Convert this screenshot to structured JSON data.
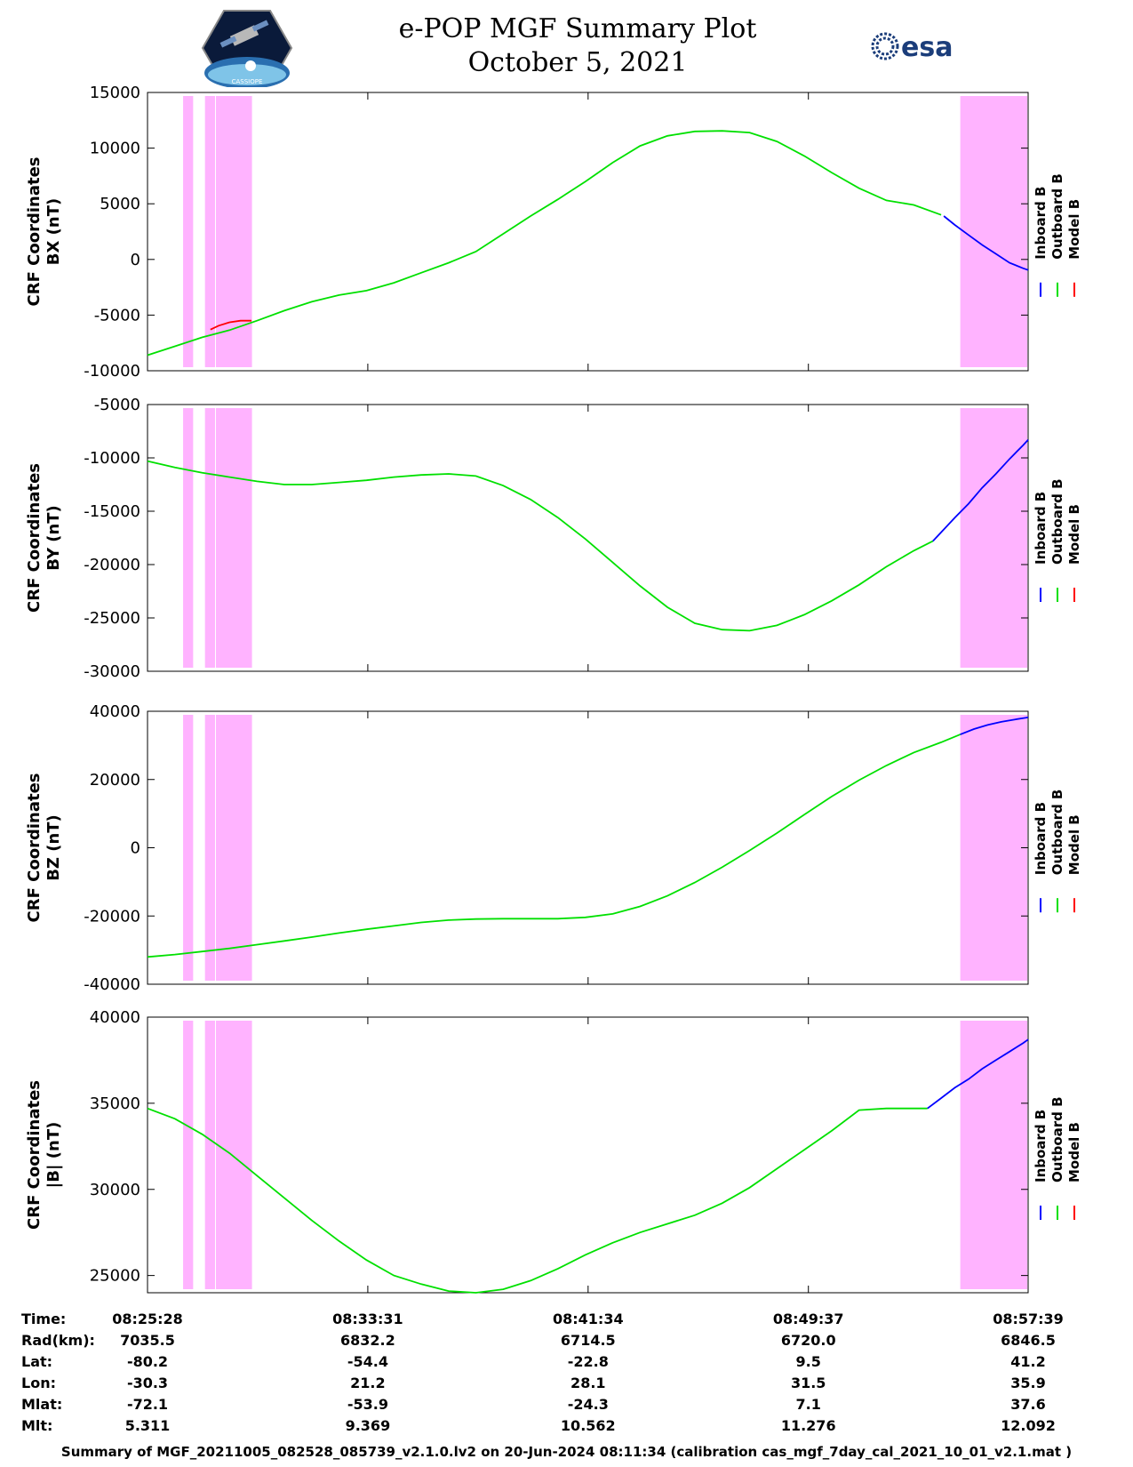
{
  "header": {
    "title": "e-POP MGF Summary Plot",
    "subtitle": "October 5, 2021",
    "logo_left": "CASSIOPE mission logo",
    "logo_left_text": "CASSIOPE",
    "logo_right": "esa logo",
    "logo_right_text": "esa"
  },
  "colors": {
    "inboard": "#0000ff",
    "outboard": "#00e000",
    "model": "#ff0000",
    "shading": "#ffb3ff"
  },
  "legend": {
    "inboard": "Inboard B",
    "outboard": "Outboard B",
    "model": "Model B"
  },
  "chart_data": [
    {
      "type": "line",
      "ylabel": [
        "CRF Coordinates",
        "BX (nT)"
      ],
      "ylim": [
        -10000,
        15000
      ],
      "yticks": [
        -10000,
        -5000,
        0,
        5000,
        10000,
        15000
      ],
      "tick_labels": [
        "-10000",
        "-5000",
        "0",
        "5000",
        "10000",
        "15000"
      ],
      "x_unit": "minutes after 08:25:28",
      "xlim": [
        0,
        32.18
      ],
      "shaded_intervals": [
        [
          1.3,
          1.7
        ],
        [
          2.1,
          2.5
        ],
        [
          2.5,
          3.85
        ],
        [
          29.7,
          32.18
        ]
      ],
      "series": [
        {
          "name": "Inboard B",
          "x": [
            29.1,
            29.5,
            30.0,
            30.5,
            31.0,
            31.5,
            32.0,
            32.18
          ],
          "values": [
            3900,
            3100,
            2200,
            1300,
            500,
            -300,
            -800,
            -950
          ]
        },
        {
          "name": "Outboard B",
          "x": [
            0,
            1,
            2,
            3,
            4,
            5,
            6,
            7,
            8,
            9,
            10,
            11,
            12,
            13,
            14,
            15,
            16,
            17,
            18,
            19,
            20,
            21,
            22,
            23,
            24,
            25,
            26,
            27,
            28,
            29
          ],
          "values": [
            -8600,
            -7800,
            -7000,
            -6350,
            -5500,
            -4600,
            -3800,
            -3200,
            -2800,
            -2100,
            -1200,
            -300,
            700,
            2300,
            3900,
            5400,
            7000,
            8700,
            10200,
            11100,
            11500,
            11550,
            11400,
            10600,
            9300,
            7800,
            6400,
            5300,
            4900,
            4000
          ]
        },
        {
          "name": "Model B",
          "x": [
            2.3,
            2.6,
            3.0,
            3.4,
            3.8
          ],
          "values": [
            -6300,
            -5950,
            -5650,
            -5500,
            -5500
          ]
        }
      ]
    },
    {
      "type": "line",
      "ylabel": [
        "CRF Coordinates",
        "BY (nT)"
      ],
      "ylim": [
        -30000,
        -5000
      ],
      "yticks": [
        -30000,
        -25000,
        -20000,
        -15000,
        -10000,
        -5000
      ],
      "tick_labels": [
        "-30000",
        "-25000",
        "-20000",
        "-15000",
        "-10000",
        "-5000"
      ],
      "x_unit": "minutes after 08:25:28",
      "xlim": [
        0,
        32.18
      ],
      "shaded_intervals": [
        [
          1.3,
          1.7
        ],
        [
          2.1,
          2.5
        ],
        [
          2.5,
          3.85
        ],
        [
          29.7,
          32.18
        ]
      ],
      "series": [
        {
          "name": "Inboard B",
          "x": [
            28.7,
            29.5,
            30.0,
            30.5,
            31.0,
            31.5,
            32.0,
            32.18
          ],
          "values": [
            -17800,
            -15600,
            -14300,
            -12800,
            -11500,
            -10100,
            -8800,
            -8300
          ]
        },
        {
          "name": "Outboard B",
          "x": [
            0,
            1,
            2,
            3,
            4,
            5,
            6,
            7,
            8,
            9,
            10,
            11,
            12,
            13,
            14,
            15,
            16,
            17,
            18,
            19,
            20,
            21,
            22,
            23,
            24,
            25,
            26,
            27,
            28,
            28.7
          ],
          "values": [
            -10300,
            -10900,
            -11400,
            -11800,
            -12200,
            -12500,
            -12500,
            -12300,
            -12100,
            -11800,
            -11600,
            -11500,
            -11700,
            -12600,
            -13900,
            -15600,
            -17600,
            -19800,
            -22000,
            -24000,
            -25500,
            -26100,
            -26200,
            -25700,
            -24700,
            -23400,
            -21900,
            -20200,
            -18700,
            -17800
          ]
        }
      ]
    },
    {
      "type": "line",
      "ylabel": [
        "CRF Coordinates",
        "BZ (nT)"
      ],
      "ylim": [
        -40000,
        40000
      ],
      "yticks": [
        -40000,
        -20000,
        0,
        20000,
        40000
      ],
      "tick_labels": [
        "-40000",
        "-20000",
        "0",
        "20000",
        "40000"
      ],
      "x_unit": "minutes after 08:25:28",
      "xlim": [
        0,
        32.18
      ],
      "shaded_intervals": [
        [
          1.3,
          1.7
        ],
        [
          2.1,
          2.5
        ],
        [
          2.5,
          3.85
        ],
        [
          29.7,
          32.18
        ]
      ],
      "series": [
        {
          "name": "Inboard B",
          "x": [
            29.7,
            30.2,
            30.7,
            31.2,
            31.7,
            32.18
          ],
          "values": [
            33200,
            34800,
            36000,
            36900,
            37600,
            38200
          ]
        },
        {
          "name": "Outboard B",
          "x": [
            0,
            1,
            2,
            3,
            4,
            5,
            6,
            7,
            8,
            9,
            10,
            11,
            12,
            13,
            14,
            15,
            16,
            17,
            18,
            19,
            20,
            21,
            22,
            23,
            24,
            25,
            26,
            27,
            28,
            29,
            29.7
          ],
          "values": [
            -32000,
            -31300,
            -30400,
            -29500,
            -28400,
            -27300,
            -26200,
            -25000,
            -23900,
            -22900,
            -21900,
            -21200,
            -20900,
            -20800,
            -20800,
            -20800,
            -20400,
            -19400,
            -17200,
            -14100,
            -10200,
            -5700,
            -800,
            4300,
            9700,
            15000,
            19800,
            24100,
            27900,
            30900,
            33200
          ]
        }
      ]
    },
    {
      "type": "line",
      "ylabel": [
        "CRF Coordinates",
        "|B| (nT)"
      ],
      "ylim": [
        24000,
        40000
      ],
      "yticks": [
        25000,
        30000,
        35000,
        40000
      ],
      "tick_labels": [
        "25000",
        "30000",
        "35000",
        "40000"
      ],
      "x_unit": "minutes after 08:25:28",
      "xlim": [
        0,
        32.18
      ],
      "shaded_intervals": [
        [
          1.3,
          1.7
        ],
        [
          2.1,
          2.5
        ],
        [
          2.5,
          3.85
        ],
        [
          29.7,
          32.18
        ]
      ],
      "series": [
        {
          "name": "Inboard B",
          "x": [
            28.5,
            29.0,
            29.5,
            30.0,
            30.5,
            31.0,
            31.5,
            32.0,
            32.18
          ],
          "values": [
            34700,
            35300,
            35900,
            36400,
            37000,
            37500,
            38000,
            38500,
            38700
          ]
        },
        {
          "name": "Outboard B",
          "x": [
            0,
            1,
            2,
            3,
            4,
            5,
            6,
            7,
            8,
            9,
            10,
            11,
            12,
            13,
            14,
            15,
            16,
            17,
            18,
            19,
            20,
            21,
            22,
            23,
            24,
            25,
            26,
            27,
            28,
            28.5
          ],
          "values": [
            34700,
            34100,
            33200,
            32100,
            30800,
            29500,
            28200,
            27000,
            25900,
            25000,
            24500,
            24100,
            24000,
            24200,
            24700,
            25400,
            26200,
            26900,
            27500,
            28000,
            28500,
            29200,
            30100,
            31200,
            32300,
            33400,
            34600,
            34700,
            34700,
            34700
          ]
        }
      ]
    }
  ],
  "x_ticks": {
    "labels": [
      "08:25:28",
      "08:33:31",
      "08:41:34",
      "08:49:37",
      "08:57:39"
    ],
    "minutes": [
      0,
      8.05,
      16.1,
      24.15,
      32.18
    ]
  },
  "info_table": {
    "row_labels": [
      "Time:",
      "Rad(km):",
      "Lat:",
      "Lon:",
      "Mlat:",
      "Mlt:"
    ],
    "columns": [
      [
        "08:25:28",
        "7035.5",
        "-80.2",
        "-30.3",
        "-72.1",
        "5.311"
      ],
      [
        "08:33:31",
        "6832.2",
        "-54.4",
        "21.2",
        "-53.9",
        "9.369"
      ],
      [
        "08:41:34",
        "6714.5",
        "-22.8",
        "28.1",
        "-24.3",
        "10.562"
      ],
      [
        "08:49:37",
        "6720.0",
        "9.5",
        "31.5",
        "7.1",
        "11.276"
      ],
      [
        "08:57:39",
        "6846.5",
        "41.2",
        "35.9",
        "37.6",
        "12.092"
      ]
    ]
  },
  "footer": "Summary of MGF_20211005_082528_085739_v2.1.0.lv2 on 20-Jun-2024 08:11:34 (calibration cas_mgf_7day_cal_2021_10_01_v2.1.mat )"
}
